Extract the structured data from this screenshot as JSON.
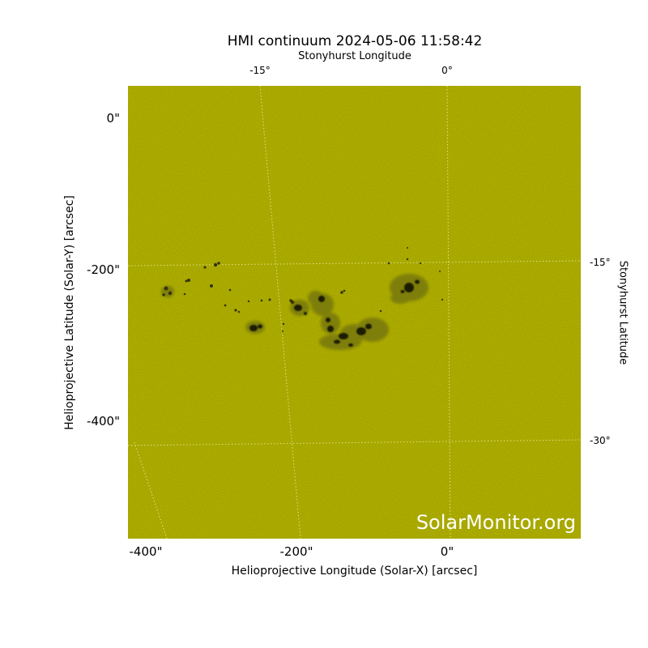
{
  "figure": {
    "title": "HMI continuum 2024-05-06 11:58:42",
    "top_axis_label": "Stonyhurst Longitude",
    "right_axis_label": "Stonyhurst Latitude",
    "xlabel": "Helioprojective Longitude (Solar-X) [arcsec]",
    "ylabel": "Helioprojective Latitude (Solar-Y) [arcsec]",
    "watermark": "SolarMonitor.org",
    "background_color": "#cccc00",
    "top_ticks": [
      "-15°",
      "0°"
    ],
    "right_ticks": [
      "-15°",
      "-30°"
    ],
    "left_ticks": [
      "0\"",
      "-200\"",
      "-400\""
    ],
    "bottom_ticks": [
      "-400\"",
      "-200\"",
      "0\""
    ]
  }
}
